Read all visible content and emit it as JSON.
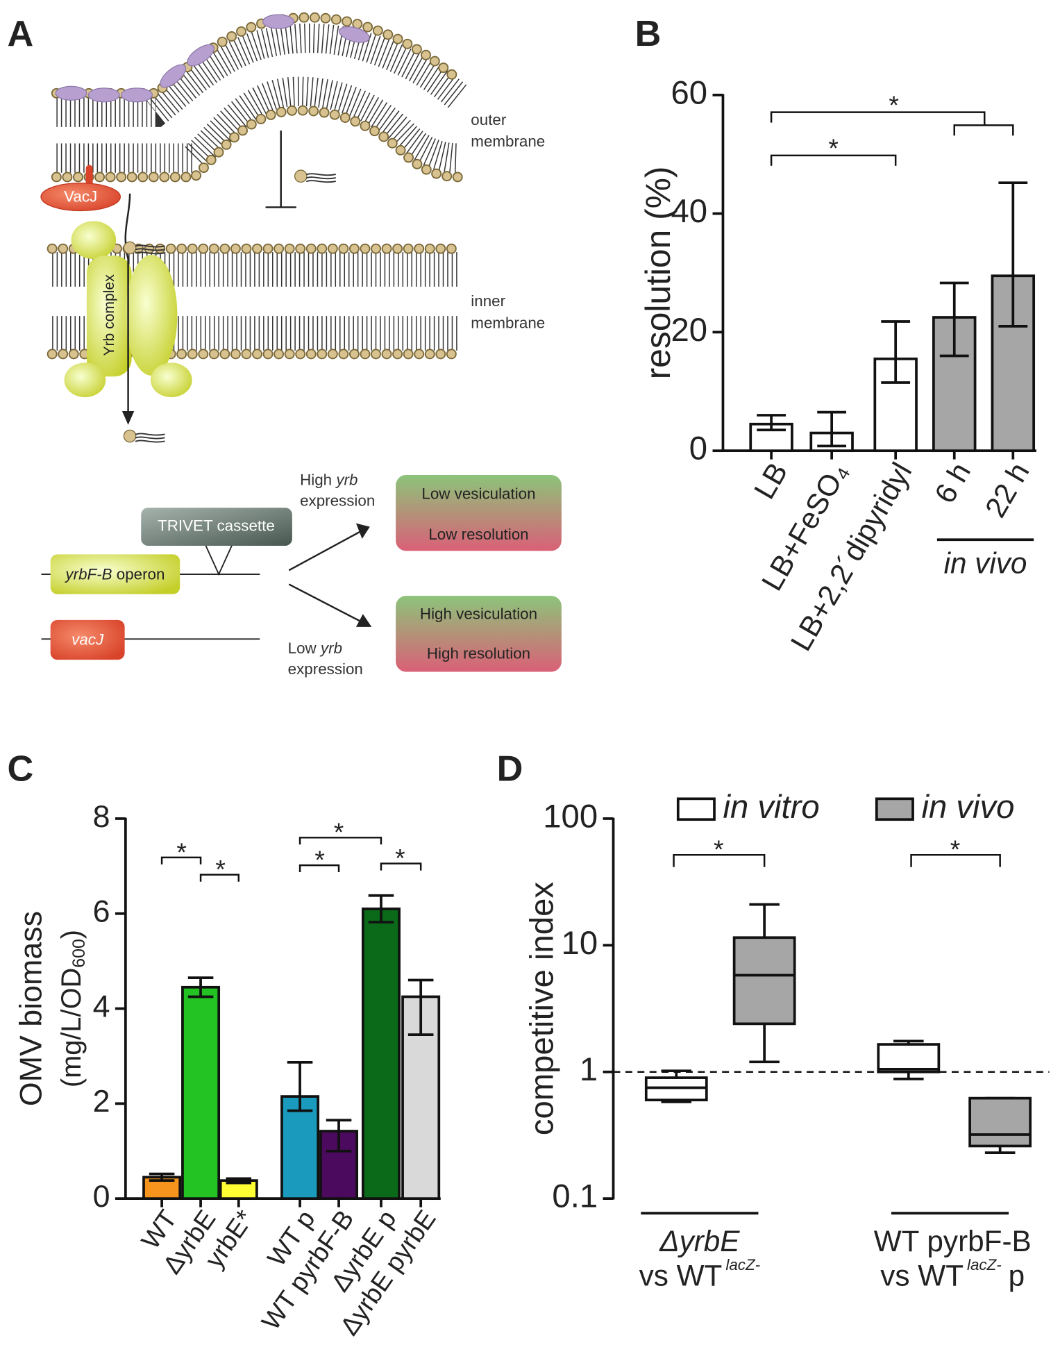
{
  "panel_labels": [
    "A",
    "B",
    "C",
    "D"
  ],
  "diagram": {
    "outer_membrane": [
      "outer",
      "membrane"
    ],
    "inner_membrane": [
      "inner",
      "membrane"
    ],
    "vacj_protein": "VacJ",
    "yrb_complex": "Yrb complex",
    "high_expression": {
      "pre": "High",
      "italic": "yrb",
      "line2": "expression"
    },
    "low_expression": {
      "pre": "Low",
      "italic": "yrb",
      "line2": "expression"
    },
    "cassette": "TRIVET cassette",
    "operon": {
      "italic": "yrbF-B",
      "post": "operon"
    },
    "vacj_gene": "vacJ",
    "outcome_low": [
      "Low vesiculation",
      "Low resolution"
    ],
    "outcome_high": [
      "High vesiculation",
      "High resolution"
    ]
  },
  "chart_data": [
    {
      "type": "bar",
      "y_label": "resolution (%)",
      "categories": [
        "LB",
        "LB+FeSO₄",
        "LB+2,2´dipyridyl",
        "6 h",
        "22 h"
      ],
      "values": [
        4.5,
        3,
        15.5,
        22.5,
        29.5
      ],
      "error_low": [
        1,
        2.2,
        4,
        6.5,
        8.5
      ],
      "error_high": [
        1.5,
        3.5,
        6.3,
        5.8,
        15.7
      ],
      "colors": [
        "#ffffff",
        "#ffffff",
        "#ffffff",
        "#a6a6a6",
        "#a6a6a6"
      ],
      "ylim": [
        0,
        60
      ],
      "yticks": [
        0,
        20,
        40,
        60
      ],
      "group_label": "in vivo",
      "significance": [
        "*",
        "*"
      ]
    },
    {
      "type": "bar",
      "y_label": {
        "line1": "OMV biomass",
        "line2": "(mg/L/OD",
        "subscript": "600",
        "close": ")"
      },
      "categories": [
        "WT",
        "ΔyrbE",
        "yrbE*",
        "WT p",
        "WT pyrbF-B",
        "ΔyrbE p",
        "ΔyrbE pyrbE"
      ],
      "values": [
        0.45,
        4.45,
        0.38,
        2.15,
        1.42,
        6.1,
        4.25
      ],
      "error_low": [
        0.07,
        0.2,
        0.05,
        0.3,
        0.42,
        0.28,
        0.8
      ],
      "error_high": [
        0.07,
        0.2,
        0.04,
        0.72,
        0.23,
        0.28,
        0.35
      ],
      "colors": [
        "#f7941d",
        "#22c322",
        "#ffff33",
        "#1a9bbd",
        "#4b0a5e",
        "#0a6a1a",
        "#d9d9d9"
      ],
      "ylim": [
        0,
        8
      ],
      "yticks": [
        0,
        2,
        4,
        6,
        8
      ],
      "significance": [
        "*",
        "*",
        "*",
        "*",
        "*"
      ]
    },
    {
      "type": "box",
      "y_label": "competitive index",
      "log_scale": true,
      "ylim": [
        0.1,
        100
      ],
      "yticks": [
        0.1,
        1,
        10,
        100
      ],
      "reference_line": 1,
      "groups": [
        {
          "line1": "ΔyrbE",
          "line2": "vs WT",
          "superscript": "lacZ-"
        },
        {
          "line1": "WT pyrbF-B",
          "line2": "vs WT",
          "superscript": "lacZ-",
          "suffix": "p"
        }
      ],
      "series": [
        {
          "name": "in vitro",
          "color": "#ffffff",
          "boxes": [
            {
              "whisker_low": 0.58,
              "q1": 0.6,
              "median": 0.75,
              "q3": 0.9,
              "whisker_high": 1.02
            },
            {
              "whisker_low": 0.88,
              "q1": 1.0,
              "median": 1.05,
              "q3": 1.65,
              "whisker_high": 1.75
            }
          ]
        },
        {
          "name": "in vivo",
          "color": "#a6a6a6",
          "boxes": [
            {
              "whisker_low": 1.2,
              "q1": 2.4,
              "median": 5.8,
              "q3": 11.5,
              "whisker_high": 21
            },
            {
              "whisker_low": 0.23,
              "q1": 0.26,
              "median": 0.32,
              "q3": 0.62,
              "whisker_high": 0.62
            }
          ]
        }
      ],
      "significance": [
        "*",
        "*"
      ]
    }
  ]
}
